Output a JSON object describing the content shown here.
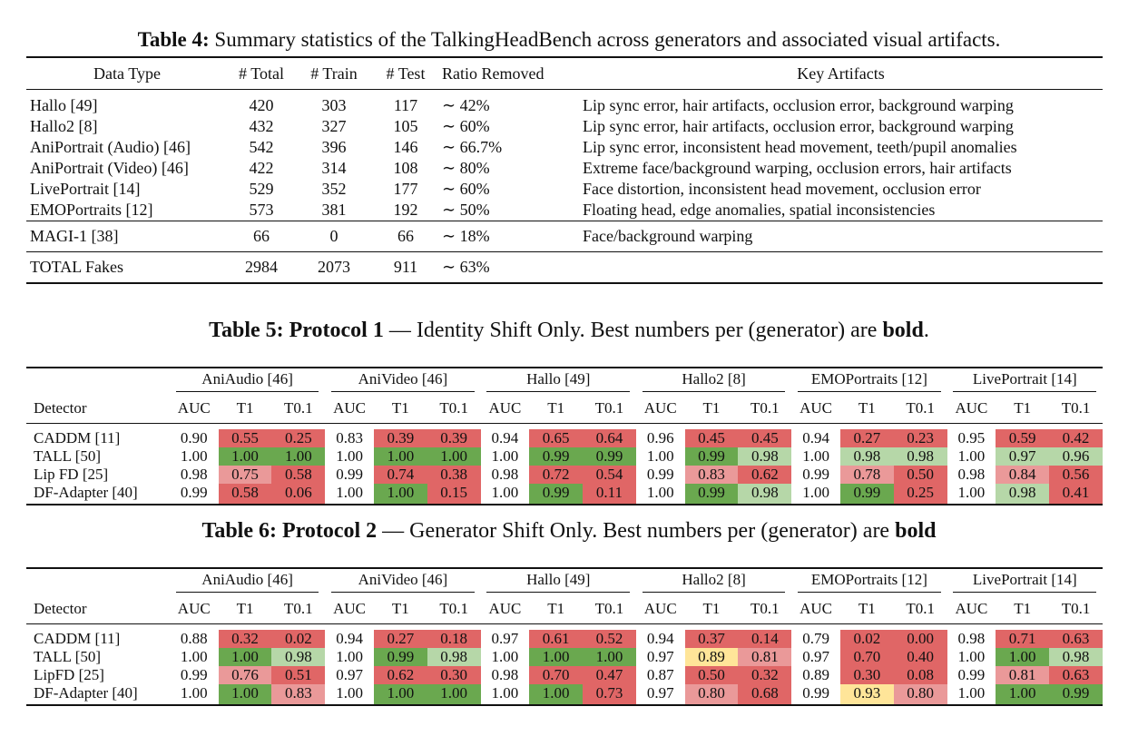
{
  "table4": {
    "caption_label": "Table 4:",
    "caption_text": " Summary statistics of the TalkingHeadBench across generators and associated visual artifacts.",
    "headers": [
      "Data Type",
      "# Total",
      "# Train",
      "# Test",
      "Ratio Removed",
      "Key Artifacts"
    ],
    "rows": [
      [
        "Hallo [49]",
        "420",
        "303",
        "117",
        "∼ 42%",
        "Lip sync error, hair artifacts, occlusion error, background warping"
      ],
      [
        "Hallo2 [8]",
        "432",
        "327",
        "105",
        "∼ 60%",
        "Lip sync error, hair artifacts, occlusion error, background warping"
      ],
      [
        "AniPortrait (Audio) [46]",
        "542",
        "396",
        "146",
        "∼ 66.7%",
        "Lip sync error, inconsistent head movement, teeth/pupil anomalies"
      ],
      [
        "AniPortrait (Video) [46]",
        "422",
        "314",
        "108",
        "∼ 80%",
        "Extreme face/background warping, occlusion errors, hair artifacts"
      ],
      [
        "LivePortrait  [14]",
        "529",
        "352",
        "177",
        "∼ 60%",
        "Face distortion, inconsistent head movement, occlusion error"
      ],
      [
        "EMOPortraits [12]",
        "573",
        "381",
        "192",
        "∼ 50%",
        "Floating head, edge anomalies, spatial inconsistencies"
      ]
    ],
    "magi_row": [
      "MAGI-1 [38]",
      "66",
      "0",
      "66",
      "∼ 18%",
      "Face/background warping"
    ],
    "total_row": [
      "TOTAL Fakes",
      "2984",
      "2073",
      "911",
      "∼ 63%",
      ""
    ]
  },
  "table5": {
    "caption_bold": "Table 5: Protocol 1",
    "caption_text": " — Identity Shift Only. Best numbers per (generator) are ",
    "caption_tail_bold": "bold",
    "caption_end": ".",
    "groups": [
      "AniAudio [46]",
      "AniVideo [46]",
      "Hallo [49]",
      "Hallo2 [8]",
      "EMOPortraits [12]",
      "LivePortrait [14]"
    ],
    "subheaders": [
      "AUC",
      "T1",
      "T0.1"
    ],
    "detector_label": "Detector",
    "rows": [
      {
        "detector": "CADDM [11]",
        "cells": [
          [
            "0.90",
            "#ffffff",
            0
          ],
          [
            "0.55",
            "#e06666",
            0
          ],
          [
            "0.25",
            "#e06666",
            0
          ],
          [
            "0.83",
            "#ffffff",
            0
          ],
          [
            "0.39",
            "#e06666",
            0
          ],
          [
            "0.39",
            "#e06666",
            0
          ],
          [
            "0.94",
            "#ffffff",
            0
          ],
          [
            "0.65",
            "#e06666",
            0
          ],
          [
            "0.64",
            "#e06666",
            0
          ],
          [
            "0.96",
            "#ffffff",
            0
          ],
          [
            "0.45",
            "#e06666",
            0
          ],
          [
            "0.45",
            "#e06666",
            0
          ],
          [
            "0.94",
            "#ffffff",
            0
          ],
          [
            "0.27",
            "#e06666",
            0
          ],
          [
            "0.23",
            "#e06666",
            0
          ],
          [
            "0.95",
            "#ffffff",
            0
          ],
          [
            "0.59",
            "#e06666",
            0
          ],
          [
            "0.42",
            "#e06666",
            0
          ]
        ]
      },
      {
        "detector": "TALL [50]",
        "cells": [
          [
            "1.00",
            "#ffffff",
            1
          ],
          [
            "1.00",
            "#6aa84f",
            1
          ],
          [
            "1.00",
            "#6aa84f",
            1
          ],
          [
            "1.00",
            "#ffffff",
            1
          ],
          [
            "1.00",
            "#6aa84f",
            1
          ],
          [
            "1.00",
            "#6aa84f",
            1
          ],
          [
            "1.00",
            "#ffffff",
            1
          ],
          [
            "0.99",
            "#6aa84f",
            1
          ],
          [
            "0.99",
            "#6aa84f",
            1
          ],
          [
            "1.00",
            "#ffffff",
            1
          ],
          [
            "0.99",
            "#6aa84f",
            1
          ],
          [
            "0.98",
            "#b6d7a8",
            1
          ],
          [
            "1.00",
            "#ffffff",
            1
          ],
          [
            "0.98",
            "#b6d7a8",
            0
          ],
          [
            "0.98",
            "#b6d7a8",
            1
          ],
          [
            "1.00",
            "#ffffff",
            1
          ],
          [
            "0.97",
            "#b6d7a8",
            0
          ],
          [
            "0.96",
            "#b6d7a8",
            1
          ]
        ]
      },
      {
        "detector": "Lip FD [25]",
        "cells": [
          [
            "0.98",
            "#ffffff",
            0
          ],
          [
            "0.75",
            "#ea9999",
            0
          ],
          [
            "0.58",
            "#e06666",
            0
          ],
          [
            "0.99",
            "#ffffff",
            0
          ],
          [
            "0.74",
            "#e06666",
            0
          ],
          [
            "0.38",
            "#e06666",
            0
          ],
          [
            "0.98",
            "#ffffff",
            0
          ],
          [
            "0.72",
            "#e06666",
            0
          ],
          [
            "0.54",
            "#e06666",
            0
          ],
          [
            "0.99",
            "#ffffff",
            0
          ],
          [
            "0.83",
            "#ea9999",
            0
          ],
          [
            "0.62",
            "#e06666",
            0
          ],
          [
            "0.99",
            "#ffffff",
            0
          ],
          [
            "0.78",
            "#ea9999",
            0
          ],
          [
            "0.50",
            "#e06666",
            0
          ],
          [
            "0.98",
            "#ffffff",
            0
          ],
          [
            "0.84",
            "#ea9999",
            0
          ],
          [
            "0.56",
            "#e06666",
            0
          ]
        ]
      },
      {
        "detector": "DF-Adapter [40]",
        "cells": [
          [
            "0.99",
            "#ffffff",
            0
          ],
          [
            "0.58",
            "#e06666",
            0
          ],
          [
            "0.06",
            "#e06666",
            0
          ],
          [
            "1.00",
            "#ffffff",
            1
          ],
          [
            "1.00",
            "#6aa84f",
            1
          ],
          [
            "0.15",
            "#e06666",
            0
          ],
          [
            "1.00",
            "#ffffff",
            1
          ],
          [
            "0.99",
            "#6aa84f",
            1
          ],
          [
            "0.11",
            "#e06666",
            0
          ],
          [
            "1.00",
            "#ffffff",
            1
          ],
          [
            "0.99",
            "#6aa84f",
            1
          ],
          [
            "0.98",
            "#b6d7a8",
            1
          ],
          [
            "1.00",
            "#ffffff",
            1
          ],
          [
            "0.99",
            "#6aa84f",
            1
          ],
          [
            "0.25",
            "#e06666",
            0
          ],
          [
            "1.00",
            "#ffffff",
            1
          ],
          [
            "0.98",
            "#b6d7a8",
            1
          ],
          [
            "0.41",
            "#e06666",
            0
          ]
        ]
      }
    ]
  },
  "table6": {
    "caption_bold": "Table 6: Protocol 2",
    "caption_text": " — Generator Shift Only. Best numbers per (generator) are ",
    "caption_tail_bold": "bold",
    "caption_end": "",
    "groups": [
      "AniAudio [46]",
      "AniVideo [46]",
      "Hallo [49]",
      "Hallo2 [8]",
      "EMOPortraits [12]",
      "LivePortrait [14]"
    ],
    "subheaders": [
      "AUC",
      "T1",
      "T0.1"
    ],
    "detector_label": "Detector",
    "rows": [
      {
        "detector": "CADDM [11]",
        "cells": [
          [
            "0.88",
            "#ffffff",
            0
          ],
          [
            "0.32",
            "#e06666",
            0
          ],
          [
            "0.02",
            "#e06666",
            0
          ],
          [
            "0.94",
            "#ffffff",
            0
          ],
          [
            "0.27",
            "#e06666",
            0
          ],
          [
            "0.18",
            "#e06666",
            0
          ],
          [
            "0.97",
            "#ffffff",
            0
          ],
          [
            "0.61",
            "#e06666",
            0
          ],
          [
            "0.52",
            "#e06666",
            0
          ],
          [
            "0.94",
            "#ffffff",
            0
          ],
          [
            "0.37",
            "#e06666",
            0
          ],
          [
            "0.14",
            "#e06666",
            0
          ],
          [
            "0.79",
            "#ffffff",
            0
          ],
          [
            "0.02",
            "#e06666",
            0
          ],
          [
            "0.00",
            "#e06666",
            0
          ],
          [
            "0.98",
            "#ffffff",
            0
          ],
          [
            "0.71",
            "#e06666",
            0
          ],
          [
            "0.63",
            "#e06666",
            0
          ]
        ]
      },
      {
        "detector": "TALL [50]",
        "cells": [
          [
            "1.00",
            "#ffffff",
            1
          ],
          [
            "1.00",
            "#6aa84f",
            1
          ],
          [
            "0.98",
            "#b6d7a8",
            1
          ],
          [
            "1.00",
            "#ffffff",
            1
          ],
          [
            "0.99",
            "#6aa84f",
            0
          ],
          [
            "0.98",
            "#b6d7a8",
            0
          ],
          [
            "1.00",
            "#ffffff",
            1
          ],
          [
            "1.00",
            "#6aa84f",
            1
          ],
          [
            "1.00",
            "#6aa84f",
            1
          ],
          [
            "0.97",
            "#ffffff",
            1
          ],
          [
            "0.89",
            "#ffe599",
            1
          ],
          [
            "0.81",
            "#ea9999",
            1
          ],
          [
            "0.97",
            "#ffffff",
            0
          ],
          [
            "0.70",
            "#e06666",
            0
          ],
          [
            "0.40",
            "#e06666",
            0
          ],
          [
            "1.00",
            "#ffffff",
            1
          ],
          [
            "1.00",
            "#6aa84f",
            1
          ],
          [
            "0.98",
            "#b6d7a8",
            0
          ]
        ]
      },
      {
        "detector": "LipFD [25]",
        "cells": [
          [
            "0.99",
            "#ffffff",
            0
          ],
          [
            "0.76",
            "#ea9999",
            0
          ],
          [
            "0.51",
            "#e06666",
            0
          ],
          [
            "0.97",
            "#ffffff",
            0
          ],
          [
            "0.62",
            "#e06666",
            0
          ],
          [
            "0.30",
            "#e06666",
            0
          ],
          [
            "0.98",
            "#ffffff",
            0
          ],
          [
            "0.70",
            "#e06666",
            0
          ],
          [
            "0.47",
            "#e06666",
            0
          ],
          [
            "0.87",
            "#ffffff",
            0
          ],
          [
            "0.50",
            "#e06666",
            0
          ],
          [
            "0.32",
            "#e06666",
            0
          ],
          [
            "0.89",
            "#ffffff",
            0
          ],
          [
            "0.30",
            "#e06666",
            0
          ],
          [
            "0.08",
            "#e06666",
            0
          ],
          [
            "0.99",
            "#ffffff",
            0
          ],
          [
            "0.81",
            "#ea9999",
            0
          ],
          [
            "0.63",
            "#e06666",
            0
          ]
        ]
      },
      {
        "detector": "DF-Adapter [40]",
        "cells": [
          [
            "1.00",
            "#ffffff",
            1
          ],
          [
            "1.00",
            "#6aa84f",
            1
          ],
          [
            "0.83",
            "#ea9999",
            0
          ],
          [
            "1.00",
            "#ffffff",
            1
          ],
          [
            "1.00",
            "#6aa84f",
            1
          ],
          [
            "1.00",
            "#6aa84f",
            1
          ],
          [
            "1.00",
            "#ffffff",
            1
          ],
          [
            "1.00",
            "#6aa84f",
            1
          ],
          [
            "0.73",
            "#e06666",
            0
          ],
          [
            "0.97",
            "#ffffff",
            1
          ],
          [
            "0.80",
            "#ea9999",
            0
          ],
          [
            "0.68",
            "#e06666",
            0
          ],
          [
            "0.99",
            "#ffffff",
            1
          ],
          [
            "0.93",
            "#ffe599",
            1
          ],
          [
            "0.80",
            "#ea9999",
            1
          ],
          [
            "1.00",
            "#ffffff",
            1
          ],
          [
            "1.00",
            "#6aa84f",
            1
          ],
          [
            "0.99",
            "#6aa84f",
            1
          ]
        ]
      }
    ]
  }
}
